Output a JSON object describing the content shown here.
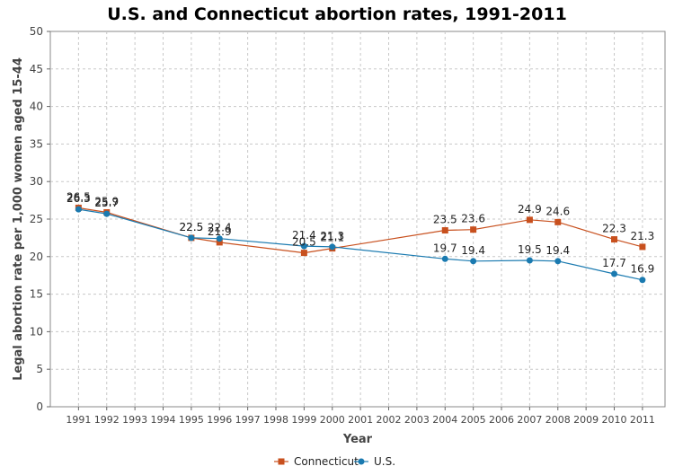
{
  "chart_data": {
    "type": "line",
    "title": "U.S. and Connecticut abortion rates, 1991-2011",
    "xlabel": "Year",
    "ylabel": "Legal abortion rate per 1,000 women aged 15-44",
    "x": [
      1991,
      1992,
      1993,
      1994,
      1995,
      1996,
      1997,
      1998,
      1999,
      2000,
      2001,
      2002,
      2003,
      2004,
      2005,
      2006,
      2007,
      2008,
      2009,
      2010,
      2011
    ],
    "xlim": [
      1990,
      2011.8
    ],
    "ylim": [
      0,
      50
    ],
    "yticks": [
      0,
      5,
      10,
      15,
      20,
      25,
      30,
      35,
      40,
      45,
      50
    ],
    "grid": true,
    "legend_position": "bottom",
    "series": [
      {
        "name": "Connecticut",
        "color": "#c8501e",
        "marker": "square",
        "points": [
          {
            "x": 1991,
            "y": 26.5,
            "label": "26.5"
          },
          {
            "x": 1992,
            "y": 25.9,
            "label": "25.9"
          },
          {
            "x": 1995,
            "y": 22.5,
            "label": "22.5"
          },
          {
            "x": 1996,
            "y": 21.9,
            "label": "21.9"
          },
          {
            "x": 1999,
            "y": 20.5,
            "label": "20.5"
          },
          {
            "x": 2000,
            "y": 21.1,
            "label": "21.1"
          },
          {
            "x": 2004,
            "y": 23.5,
            "label": "23.5"
          },
          {
            "x": 2005,
            "y": 23.6,
            "label": "23.6"
          },
          {
            "x": 2007,
            "y": 24.9,
            "label": "24.9"
          },
          {
            "x": 2008,
            "y": 24.6,
            "label": "24.6"
          },
          {
            "x": 2010,
            "y": 22.3,
            "label": "22.3"
          },
          {
            "x": 2011,
            "y": 21.3,
            "label": "21.3"
          }
        ]
      },
      {
        "name": "U.S.",
        "color": "#1a7ab0",
        "marker": "circle",
        "points": [
          {
            "x": 1991,
            "y": 26.3,
            "label": "26.3"
          },
          {
            "x": 1992,
            "y": 25.7,
            "label": "25.7"
          },
          {
            "x": 1995,
            "y": 22.5,
            "label": "22.5"
          },
          {
            "x": 1996,
            "y": 22.4,
            "label": "22.4"
          },
          {
            "x": 1999,
            "y": 21.4,
            "label": "21.4"
          },
          {
            "x": 2000,
            "y": 21.3,
            "label": "21.3"
          },
          {
            "x": 2004,
            "y": 19.7,
            "label": "19.7"
          },
          {
            "x": 2005,
            "y": 19.4,
            "label": "19.4"
          },
          {
            "x": 2007,
            "y": 19.5,
            "label": "19.5"
          },
          {
            "x": 2008,
            "y": 19.4,
            "label": "19.4"
          },
          {
            "x": 2010,
            "y": 17.7,
            "label": "17.7"
          },
          {
            "x": 2011,
            "y": 16.9,
            "label": "16.9"
          }
        ]
      }
    ]
  }
}
